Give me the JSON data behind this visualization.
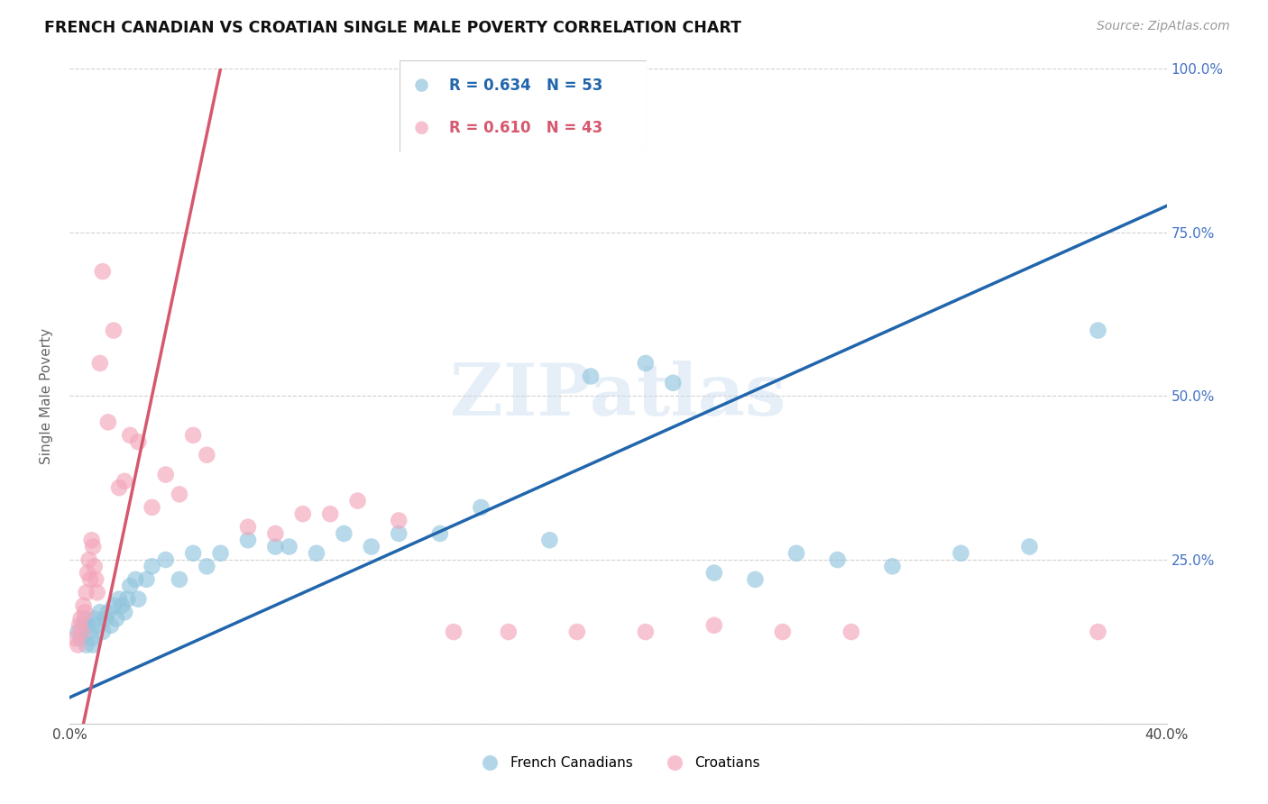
{
  "title": "FRENCH CANADIAN VS CROATIAN SINGLE MALE POVERTY CORRELATION CHART",
  "source": "Source: ZipAtlas.com",
  "ylabel": "Single Male Poverty",
  "legend_blue_r": "R = 0.634",
  "legend_blue_n": "N = 53",
  "legend_pink_r": "R = 0.610",
  "legend_pink_n": "N = 43",
  "legend_blue_label": "French Canadians",
  "legend_pink_label": "Croatians",
  "blue_color": "#92C5DE",
  "pink_color": "#F4A6BB",
  "blue_line_color": "#2166AC",
  "pink_line_color": "#D6586E",
  "blue_r_color": "#2166AC",
  "pink_r_color": "#D6586E",
  "watermark_text": "ZIPatlas",
  "xmin": 0.0,
  "xmax": 40.0,
  "ymin": 0.0,
  "ymax": 100.0,
  "blue_line_x0": 0.0,
  "blue_line_x1": 40.0,
  "blue_line_y0": 4.0,
  "blue_line_y1": 79.0,
  "pink_line_x0": 0.5,
  "pink_line_x1": 5.5,
  "pink_line_y0": 0.0,
  "pink_line_y1": 100.0,
  "blue_x": [
    0.3,
    0.4,
    0.5,
    0.55,
    0.6,
    0.65,
    0.7,
    0.8,
    0.85,
    0.9,
    1.0,
    1.1,
    1.2,
    1.3,
    1.4,
    1.5,
    1.6,
    1.7,
    1.8,
    1.9,
    2.0,
    2.1,
    2.2,
    2.4,
    2.5,
    2.8,
    3.0,
    3.5,
    4.0,
    4.5,
    5.0,
    5.5,
    6.5,
    7.5,
    8.0,
    9.0,
    10.0,
    11.0,
    12.0,
    13.5,
    15.0,
    17.5,
    19.0,
    21.0,
    22.0,
    23.5,
    25.0,
    26.5,
    28.0,
    30.0,
    32.5,
    35.0,
    37.5
  ],
  "blue_y": [
    14,
    13,
    15,
    16,
    12,
    15,
    14,
    13,
    12,
    16,
    15,
    17,
    14,
    16,
    17,
    15,
    18,
    16,
    19,
    18,
    17,
    19,
    21,
    22,
    19,
    22,
    24,
    25,
    22,
    26,
    24,
    26,
    28,
    27,
    27,
    26,
    29,
    27,
    29,
    29,
    33,
    28,
    53,
    55,
    52,
    23,
    22,
    26,
    25,
    24,
    26,
    27,
    60
  ],
  "pink_x": [
    0.2,
    0.3,
    0.35,
    0.4,
    0.45,
    0.5,
    0.55,
    0.6,
    0.65,
    0.7,
    0.75,
    0.8,
    0.85,
    0.9,
    0.95,
    1.0,
    1.1,
    1.2,
    1.4,
    1.6,
    1.8,
    2.0,
    2.2,
    2.5,
    3.0,
    3.5,
    4.0,
    4.5,
    5.0,
    6.5,
    7.5,
    8.5,
    9.5,
    10.5,
    12.0,
    14.0,
    16.0,
    18.5,
    21.0,
    23.5,
    26.0,
    28.5,
    37.5
  ],
  "pink_y": [
    13,
    12,
    15,
    16,
    14,
    18,
    17,
    20,
    23,
    25,
    22,
    28,
    27,
    24,
    22,
    20,
    55,
    69,
    46,
    60,
    36,
    37,
    44,
    43,
    33,
    38,
    35,
    44,
    41,
    30,
    29,
    32,
    32,
    34,
    31,
    14,
    14,
    14,
    14,
    15,
    14,
    14,
    14
  ]
}
